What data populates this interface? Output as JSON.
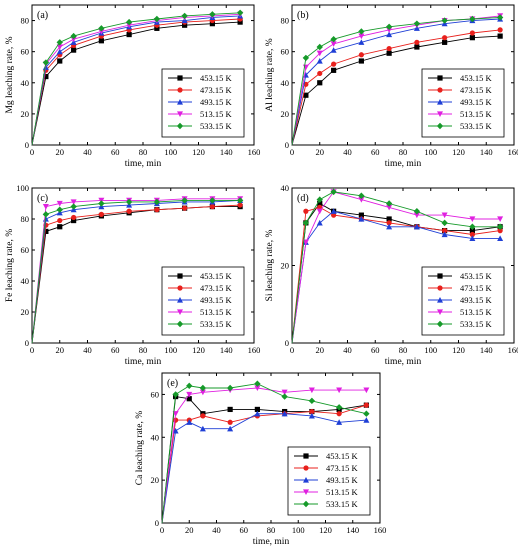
{
  "chart_data": [
    {
      "type": "line",
      "panel_label": "(a)",
      "xlabel": "time, min",
      "ylabel": "Mg leaching rate, %",
      "xlim": [
        0,
        160
      ],
      "ylim": [
        0,
        90
      ],
      "xticks": [
        0,
        20,
        40,
        60,
        80,
        100,
        120,
        140,
        160
      ],
      "yticks": [
        0,
        20,
        40,
        60,
        80
      ],
      "legend_position": "lower-right",
      "x": [
        0,
        10,
        20,
        30,
        50,
        70,
        90,
        110,
        130,
        150
      ],
      "series": [
        {
          "name": "453.15 K",
          "color": "#000000",
          "marker": "square",
          "values": [
            0,
            44,
            54,
            61,
            67,
            71,
            75,
            77,
            78,
            79
          ]
        },
        {
          "name": "473.15 K",
          "color": "#e8201c",
          "marker": "circle",
          "values": [
            0,
            48,
            58,
            64,
            70,
            74,
            77,
            79,
            80,
            81
          ]
        },
        {
          "name": "493.15 K",
          "color": "#1f3fd6",
          "marker": "triangle-up",
          "values": [
            0,
            50,
            60,
            66,
            72,
            76,
            79,
            80,
            82,
            83
          ]
        },
        {
          "name": "513.15 K",
          "color": "#e020e0",
          "marker": "triangle-down",
          "values": [
            0,
            52,
            63,
            68,
            73,
            77,
            80,
            82,
            83,
            84
          ]
        },
        {
          "name": "533.15 K",
          "color": "#169a2a",
          "marker": "diamond",
          "values": [
            0,
            53,
            66,
            70,
            75,
            79,
            81,
            83,
            84,
            85
          ]
        }
      ]
    },
    {
      "type": "line",
      "panel_label": "(b)",
      "xlabel": "time, min",
      "ylabel": "Al leaching rate, %",
      "xlim": [
        0,
        160
      ],
      "ylim": [
        0,
        90
      ],
      "xticks": [
        0,
        20,
        40,
        60,
        80,
        100,
        120,
        140,
        160
      ],
      "yticks": [
        0,
        20,
        40,
        60,
        80
      ],
      "legend_position": "lower-right",
      "x": [
        0,
        10,
        20,
        30,
        50,
        70,
        90,
        110,
        130,
        150
      ],
      "series": [
        {
          "name": "453.15 K",
          "color": "#000000",
          "marker": "square",
          "values": [
            0,
            32,
            40,
            48,
            54,
            59,
            63,
            66,
            69,
            70
          ]
        },
        {
          "name": "473.15 K",
          "color": "#e8201c",
          "marker": "circle",
          "values": [
            0,
            39,
            46,
            52,
            58,
            62,
            66,
            69,
            72,
            74
          ]
        },
        {
          "name": "493.15 K",
          "color": "#1f3fd6",
          "marker": "triangle-up",
          "values": [
            0,
            45,
            54,
            61,
            66,
            71,
            75,
            78,
            80,
            81
          ]
        },
        {
          "name": "513.15 K",
          "color": "#e020e0",
          "marker": "triangle-down",
          "values": [
            0,
            50,
            59,
            65,
            70,
            74,
            77,
            80,
            81,
            83
          ]
        },
        {
          "name": "533.15 K",
          "color": "#169a2a",
          "marker": "diamond",
          "values": [
            0,
            56,
            63,
            68,
            73,
            76,
            78,
            80,
            81,
            82
          ]
        }
      ]
    },
    {
      "type": "line",
      "panel_label": "(c)",
      "xlabel": "time, min",
      "ylabel": "Fe leaching rate, %",
      "xlim": [
        0,
        160
      ],
      "ylim": [
        0,
        100
      ],
      "xticks": [
        0,
        20,
        40,
        60,
        80,
        100,
        120,
        140,
        160
      ],
      "yticks": [
        0,
        20,
        40,
        60,
        80,
        100
      ],
      "legend_position": "lower-right",
      "x": [
        0,
        10,
        20,
        30,
        50,
        70,
        90,
        110,
        130,
        150
      ],
      "series": [
        {
          "name": "453.15 K",
          "color": "#000000",
          "marker": "square",
          "values": [
            0,
            72,
            75,
            79,
            82,
            84,
            86,
            87,
            88,
            88
          ]
        },
        {
          "name": "473.15 K",
          "color": "#e8201c",
          "marker": "circle",
          "values": [
            0,
            76,
            79,
            81,
            83,
            85,
            86,
            87,
            88,
            89
          ]
        },
        {
          "name": "493.15 K",
          "color": "#1f3fd6",
          "marker": "triangle-up",
          "values": [
            0,
            80,
            84,
            86,
            88,
            89,
            90,
            91,
            91,
            92
          ]
        },
        {
          "name": "513.15 K",
          "color": "#e020e0",
          "marker": "triangle-down",
          "values": [
            0,
            88,
            90,
            91,
            92,
            92,
            92,
            93,
            93,
            93
          ]
        },
        {
          "name": "533.15 K",
          "color": "#169a2a",
          "marker": "diamond",
          "values": [
            0,
            83,
            86,
            88,
            90,
            91,
            91,
            92,
            92,
            92
          ]
        }
      ]
    },
    {
      "type": "line",
      "panel_label": "(d)",
      "xlabel": "time, min",
      "ylabel": "Si leaching rate, %",
      "xlim": [
        0,
        160
      ],
      "ylim": [
        0,
        40
      ],
      "xticks": [
        0,
        20,
        40,
        60,
        80,
        100,
        120,
        140,
        160
      ],
      "yticks": [
        0,
        20,
        40
      ],
      "legend_position": "lower-right",
      "x": [
        0,
        10,
        20,
        30,
        50,
        70,
        90,
        110,
        130,
        150
      ],
      "series": [
        {
          "name": "453.15 K",
          "color": "#000000",
          "marker": "square",
          "values": [
            0,
            31,
            36,
            34,
            33,
            32,
            30,
            29,
            29,
            30
          ]
        },
        {
          "name": "473.15 K",
          "color": "#e8201c",
          "marker": "circle",
          "values": [
            0,
            34,
            35,
            33,
            32,
            31,
            30,
            29,
            28,
            29
          ]
        },
        {
          "name": "493.15 K",
          "color": "#1f3fd6",
          "marker": "triangle-up",
          "values": [
            0,
            26,
            31,
            34,
            32,
            30,
            30,
            28,
            27,
            27
          ]
        },
        {
          "name": "513.15 K",
          "color": "#e020e0",
          "marker": "triangle-down",
          "values": [
            0,
            26,
            34,
            39,
            37,
            35,
            33,
            33,
            32,
            32
          ]
        },
        {
          "name": "533.15 K",
          "color": "#169a2a",
          "marker": "diamond",
          "values": [
            0,
            31,
            37,
            39,
            38,
            36,
            34,
            31,
            30,
            30
          ]
        }
      ]
    },
    {
      "type": "line",
      "panel_label": "(e)",
      "xlabel": "time, min",
      "ylabel": "Ca leaching rate, %",
      "xlim": [
        0,
        160
      ],
      "ylim": [
        0,
        70
      ],
      "xticks": [
        0,
        20,
        40,
        60,
        80,
        100,
        120,
        140,
        160
      ],
      "yticks": [
        0,
        20,
        40,
        60
      ],
      "legend_position": "lower-right",
      "x": [
        0,
        10,
        20,
        30,
        50,
        70,
        90,
        110,
        130,
        150
      ],
      "series": [
        {
          "name": "453.15 K",
          "color": "#000000",
          "marker": "square",
          "values": [
            0,
            59,
            58,
            51,
            53,
            53,
            52,
            52,
            53,
            55
          ]
        },
        {
          "name": "473.15 K",
          "color": "#e8201c",
          "marker": "circle",
          "values": [
            0,
            48,
            48,
            50,
            47,
            50,
            51,
            52,
            51,
            55
          ]
        },
        {
          "name": "493.15 K",
          "color": "#1f3fd6",
          "marker": "triangle-up",
          "values": [
            0,
            43,
            47,
            44,
            44,
            51,
            51,
            50,
            47,
            48
          ]
        },
        {
          "name": "513.15 K",
          "color": "#e020e0",
          "marker": "triangle-down",
          "values": [
            0,
            51,
            60,
            61,
            62,
            63,
            61,
            62,
            62,
            62
          ]
        },
        {
          "name": "533.15 K",
          "color": "#169a2a",
          "marker": "diamond",
          "values": [
            0,
            60,
            64,
            63,
            63,
            65,
            59,
            57,
            54,
            51
          ]
        }
      ]
    }
  ]
}
